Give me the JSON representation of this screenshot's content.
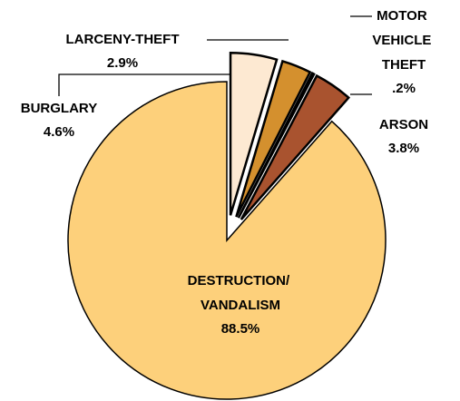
{
  "chart_data": {
    "type": "pie",
    "categories": [
      "BURGLARY",
      "LARCENY-THEFT",
      "MOTOR VEHICLE THEFT",
      "ARSON",
      "DESTRUCTION/ VANDALISM"
    ],
    "values": [
      4.6,
      2.9,
      0.2,
      3.8,
      88.5
    ],
    "value_labels": [
      "4.6%",
      "2.9%",
      ".2%",
      "3.8%",
      "88.5%"
    ],
    "colors": [
      "#fde9d2",
      "#d4902e",
      "#1a1a1a",
      "#a9532f",
      "#fdd07b"
    ]
  }
}
